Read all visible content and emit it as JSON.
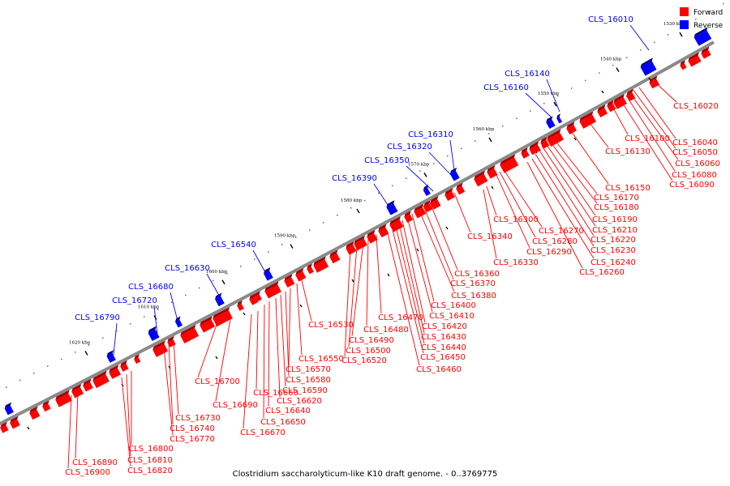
{
  "caption": "Clostridium saccharolyticum-like K10 draft genome. - 0..3769775",
  "legend": {
    "forward_label": "Forward",
    "reverse_label": "Reverse",
    "forward_color": "#ff0000",
    "reverse_color": "#0000ff"
  },
  "ticks": [
    "1530 kbp",
    "1540 kbp",
    "1550 kbp",
    "1560 kbp",
    "1570 kbp",
    "1580 kbp",
    "1590 kbp",
    "1600 kbp",
    "1610 kbp",
    "1620 kbp"
  ],
  "reverse_labels": [
    "CLS_16010",
    "CLS_16140",
    "CLS_16160",
    "CLS_16310",
    "CLS_16320",
    "CLS_16350",
    "CLS_16390",
    "CLS_16540",
    "CLS_16630",
    "CLS_16680",
    "CLS_16720",
    "CLS_16790"
  ],
  "forward_labels": [
    "CLS_16020",
    "CLS_16040",
    "CLS_16050",
    "CLS_16060",
    "CLS_16080",
    "CLS_16090",
    "CLS_16100",
    "CLS_16130",
    "CLS_16150",
    "CLS_16170",
    "CLS_16180",
    "CLS_16190",
    "CLS_16210",
    "CLS_16220",
    "CLS_16230",
    "CLS_16240",
    "CLS_16260",
    "CLS_16270",
    "CLS_16280",
    "CLS_16290",
    "CLS_16300",
    "CLS_16330",
    "CLS_16340",
    "CLS_16360",
    "CLS_16370",
    "CLS_16380",
    "CLS_16400",
    "CLS_16410",
    "CLS_16420",
    "CLS_16430",
    "CLS_16440",
    "CLS_16450",
    "CLS_16460",
    "CLS_16470",
    "CLS_16480",
    "CLS_16490",
    "CLS_16500",
    "CLS_16520",
    "CLS_16530",
    "CLS_16550",
    "CLS_16570",
    "CLS_16580",
    "CLS_16590",
    "CLS_16620",
    "CLS_16640",
    "CLS_16650",
    "CLS_16660",
    "CLS_16670",
    "CLS_16690",
    "CLS_16700",
    "CLS_16730",
    "CLS_16740",
    "CLS_16770",
    "CLS_16800",
    "CLS_16810",
    "CLS_16820",
    "CLS_16890",
    "CLS_16900"
  ]
}
